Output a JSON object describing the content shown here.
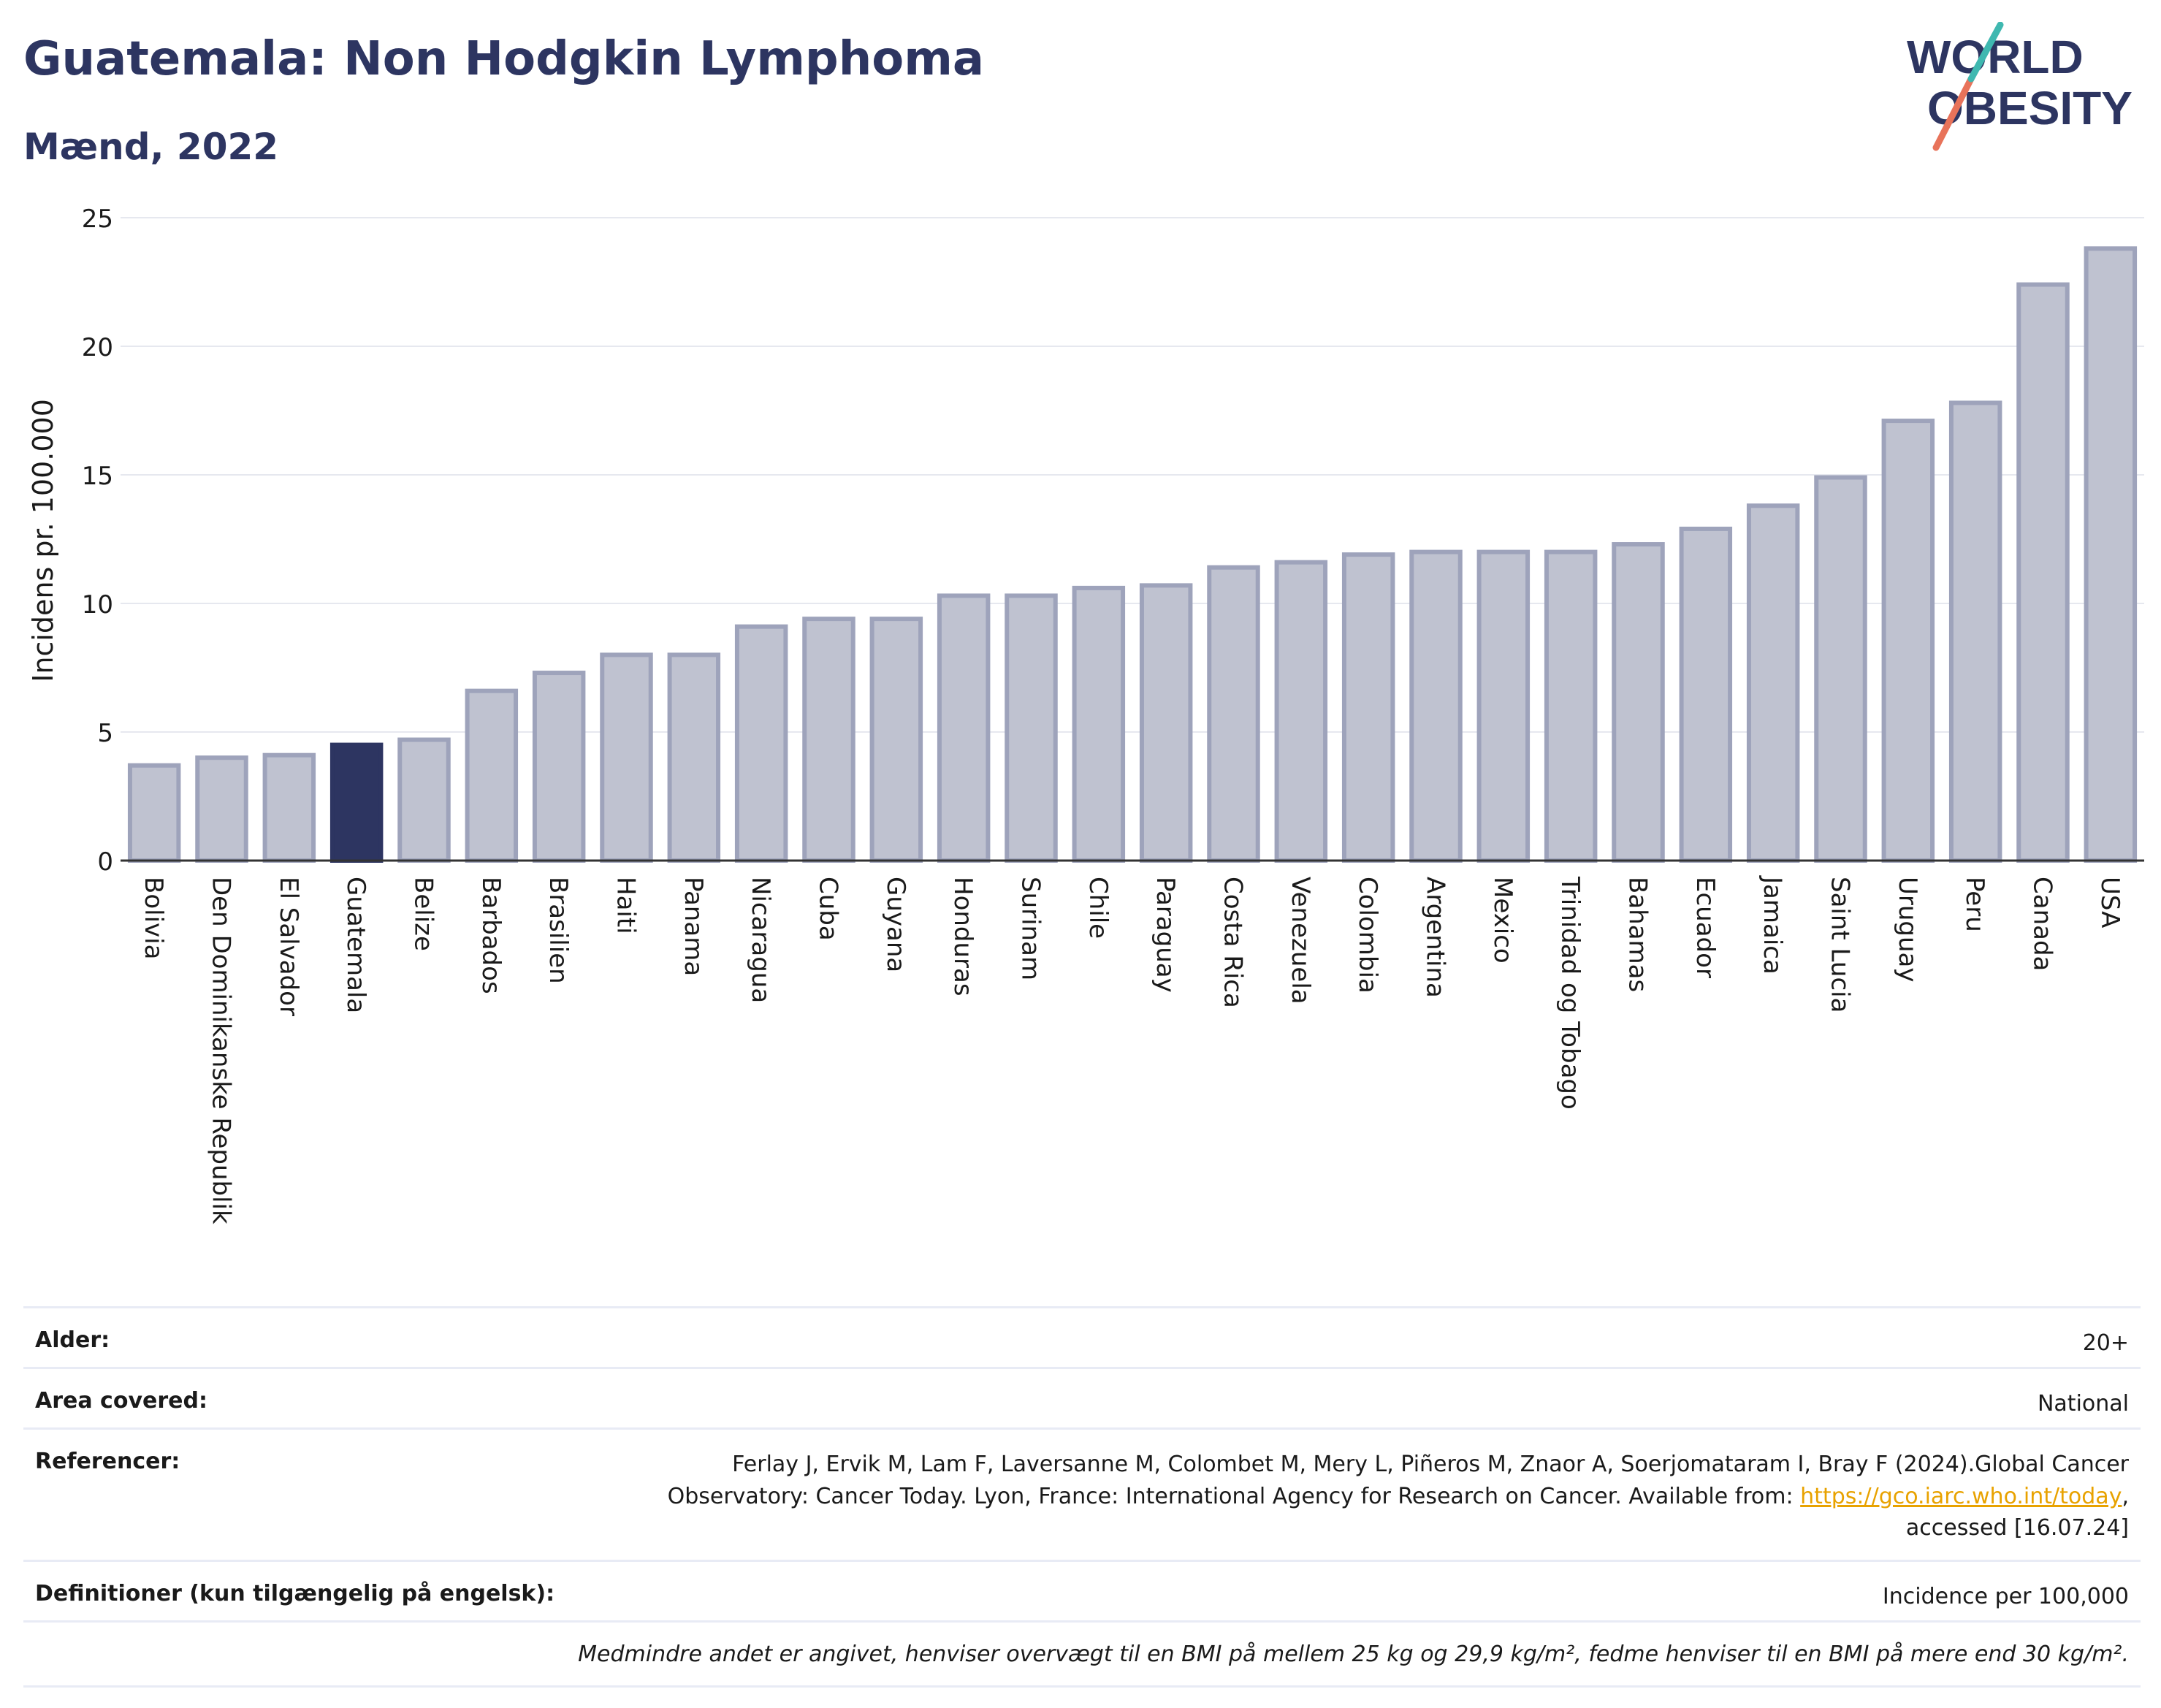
{
  "header": {
    "title": "Guatemala: Non Hodgkin Lymphoma",
    "subtitle": "Mænd, 2022",
    "logo_line1": "WORLD",
    "logo_line2": "OBESITY"
  },
  "chart_data": {
    "type": "bar",
    "ylabel": "Incidens pr. 100.000",
    "ylim": [
      0,
      25
    ],
    "yticks": [
      0,
      5,
      10,
      15,
      20,
      25
    ],
    "grid": true,
    "highlight": "Guatemala",
    "colors": {
      "bar": "#bfc2d0",
      "bar_edge": "#9ea3bb",
      "highlight": "#2d3561",
      "grid": "#e6e8ef"
    },
    "categories": [
      "Bolivia",
      "Den Dominikanske Republik",
      "El Salvador",
      "Guatemala",
      "Belize",
      "Barbados",
      "Brasilien",
      "Haiti",
      "Panama",
      "Nicaragua",
      "Cuba",
      "Guyana",
      "Honduras",
      "Surinam",
      "Chile",
      "Paraguay",
      "Costa Rica",
      "Venezuela",
      "Colombia",
      "Argentina",
      "Mexico",
      "Trinidad og Tobago",
      "Bahamas",
      "Ecuador",
      "Jamaica",
      "Saint Lucia",
      "Uruguay",
      "Peru",
      "Canada",
      "USA"
    ],
    "values": [
      3.7,
      4.0,
      4.1,
      4.5,
      4.7,
      6.6,
      7.3,
      8.0,
      8.0,
      9.1,
      9.4,
      9.4,
      10.3,
      10.3,
      10.6,
      10.7,
      11.4,
      11.6,
      11.9,
      12.0,
      12.0,
      12.0,
      12.3,
      12.9,
      13.8,
      14.9,
      17.1,
      17.8,
      22.4,
      23.8
    ]
  },
  "info": {
    "age_label": "Alder:",
    "age_value": "20+",
    "area_label": "Area covered:",
    "area_value": "National",
    "ref_label": "Referencer:",
    "ref_line1": "Ferlay J, Ervik M, Lam F, Laversanne M, Colombet M, Mery L, Piñeros M, Znaor A, Soerjomataram I, Bray F (2024).Global Cancer",
    "ref_line2": "Observatory: Cancer Today. Lyon, France: International Agency for Research on Cancer. Available from: ",
    "ref_link": "https://gco.iarc.who.int/today",
    "ref_line2_end": ",",
    "ref_line3": "accessed [16.07.24]",
    "def_label": "Definitioner (kun tilgængelig på engelsk):",
    "def_value": "Incidence per 100,000",
    "note": "Medmindre andet er angivet, henviser overvægt til en BMI på mellem 25 kg og 29,9 kg/m², fedme henviser til en BMI på mere end 30 kg/m²."
  }
}
